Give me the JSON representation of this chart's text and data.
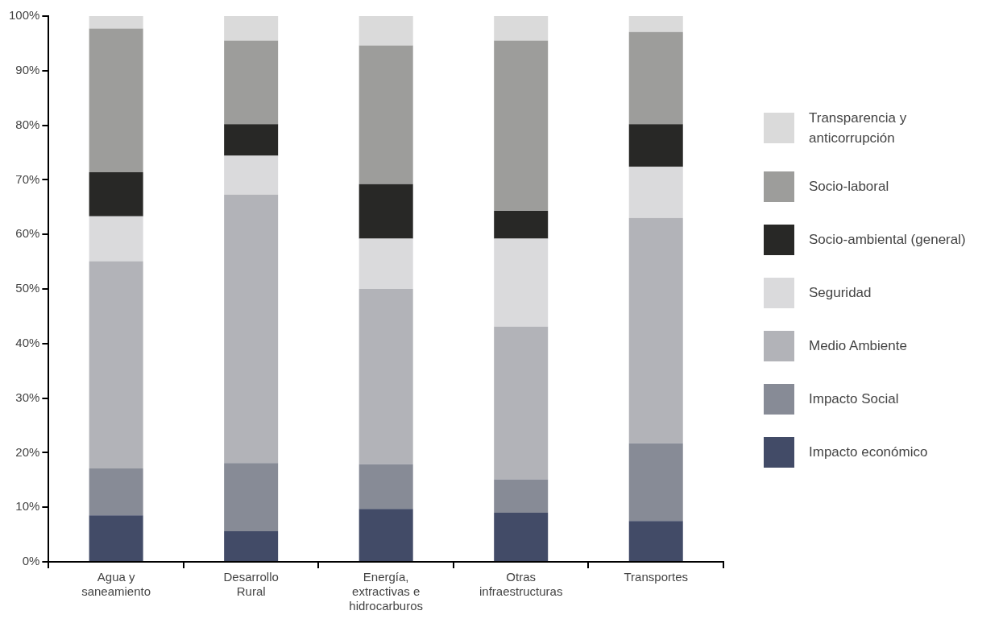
{
  "chart_data": {
    "type": "bar",
    "stacked": true,
    "legend": "right",
    "grid": false,
    "categories": [
      "Agua y saneamiento",
      "Desarrollo Rural",
      "Energía, extractivas e hidrocarburos",
      "Otras infraestructuras",
      "Transportes"
    ],
    "ylim": [
      0,
      100
    ],
    "yticks": [
      {
        "value": 0,
        "label": "0%"
      },
      {
        "value": 10,
        "label": "10%"
      },
      {
        "value": 20,
        "label": "20%"
      },
      {
        "value": 30,
        "label": "30%"
      },
      {
        "value": 40,
        "label": "40%"
      },
      {
        "value": 50,
        "label": "50%"
      },
      {
        "value": 60,
        "label": "60%"
      },
      {
        "value": 70,
        "label": "70%"
      },
      {
        "value": 80,
        "label": "80%"
      },
      {
        "value": 90,
        "label": "90%"
      },
      {
        "value": 100,
        "label": "100%"
      }
    ],
    "series": [
      {
        "name": "Impacto económico",
        "color": "#424b67",
        "values": [
          8.5,
          5.6,
          9.7,
          9.0,
          7.5
        ]
      },
      {
        "name": "Impacto Social",
        "color": "#878b96",
        "values": [
          8.6,
          12.5,
          8.2,
          6.1,
          14.2
        ]
      },
      {
        "name": "Medio Ambiente",
        "color": "#b2b3b8",
        "values": [
          38.0,
          49.2,
          32.1,
          28.0,
          41.3
        ]
      },
      {
        "name": "Seguridad",
        "color": "#dadadc",
        "values": [
          8.2,
          7.1,
          9.2,
          16.1,
          9.4
        ]
      },
      {
        "name": "Socio-ambiental (general)",
        "color": "#282826",
        "values": [
          8.1,
          5.8,
          10.0,
          5.1,
          7.8
        ]
      },
      {
        "name": "Socio-laboral",
        "color": "#9d9d9b",
        "values": [
          26.3,
          15.3,
          25.4,
          31.2,
          16.9
        ]
      },
      {
        "name": "Transparencia y anticorrupción",
        "color": "#dadada",
        "values": [
          2.3,
          4.5,
          5.4,
          4.5,
          2.9
        ]
      }
    ]
  }
}
